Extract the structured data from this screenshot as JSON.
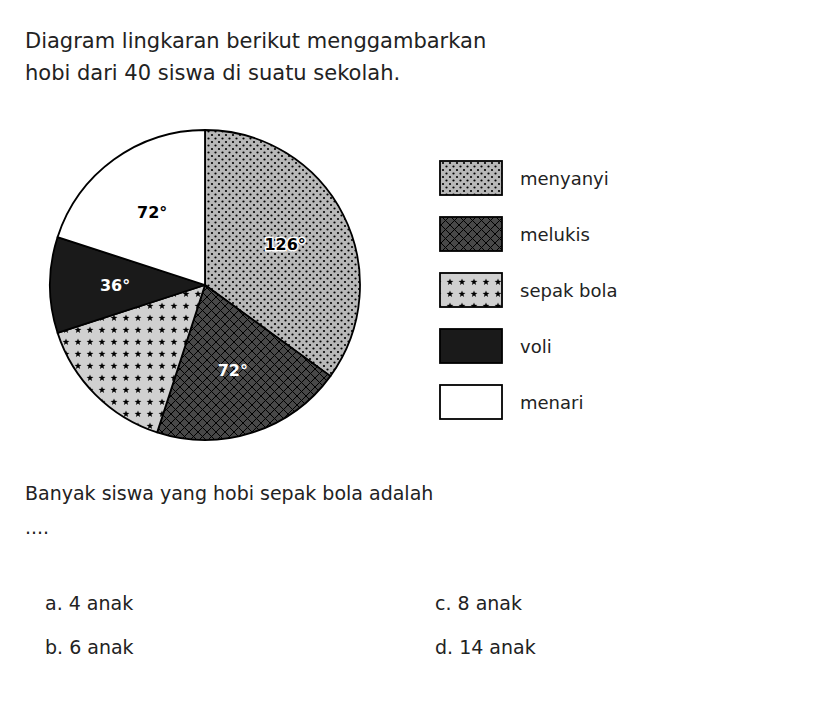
{
  "chart_data": {
    "type": "pie",
    "title": "Diagram lingkaran berikut menggambarkan",
    "subtitle": "hobi dari 40 siswa di suatu sekolah.",
    "categories": [
      "menyanyi",
      "melukis",
      "sepak bola",
      "voli",
      "menari"
    ],
    "values": [
      126,
      72,
      54,
      36,
      72
    ],
    "value_labels": [
      "126°",
      "72°",
      null,
      "36°",
      "72°"
    ],
    "colors": [
      "#b8b8b8",
      "#484848",
      "#d0d0d0",
      "#1a1a1a",
      "#ffffff"
    ],
    "data_labels": true,
    "legend": "right",
    "annotations": [
      "Banyak siswa yang hobi sepak bola adalah",
      "....",
      "a.    4 anak",
      "b.    6 anak",
      "c.    8 anak",
      "d.    14 anak"
    ]
  }
}
